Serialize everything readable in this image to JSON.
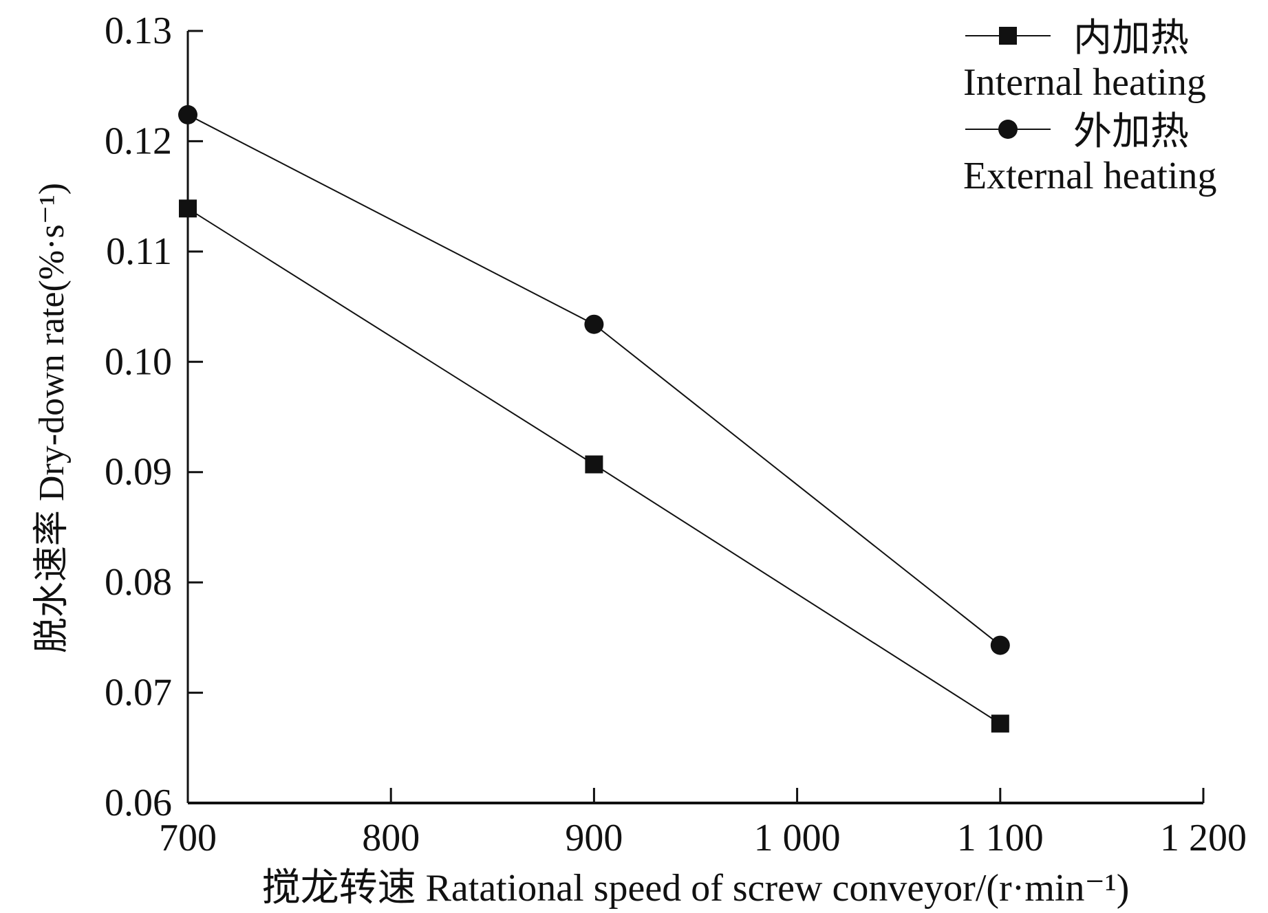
{
  "chart_data": {
    "type": "line",
    "title": "",
    "xlabel": "搅龙转速 Ratational speed of screw conveyor/(r·min⁻¹)",
    "ylabel": "脱水速率 Dry-down rate(%·s⁻¹)",
    "xlim": [
      700,
      1200
    ],
    "ylim": [
      0.06,
      0.13
    ],
    "xticks": [
      700,
      800,
      900,
      1000,
      1100,
      1200
    ],
    "xtick_labels": [
      "700",
      "800",
      "900",
      "1 000",
      "1 100",
      "1 200"
    ],
    "yticks": [
      0.06,
      0.07,
      0.08,
      0.09,
      0.1,
      0.11,
      0.12,
      0.13
    ],
    "ytick_labels": [
      "0.06",
      "0.07",
      "0.08",
      "0.09",
      "0.10",
      "0.11",
      "0.12",
      "0.13"
    ],
    "grid": false,
    "legend_position": "top-right",
    "series": [
      {
        "name": "内加热 Internal heating",
        "name_cn": "内加热",
        "name_en": "Internal heating",
        "marker": "square",
        "color": "#111111",
        "x": [
          700,
          900,
          1100
        ],
        "y": [
          0.1139,
          0.0907,
          0.0672
        ]
      },
      {
        "name": "外加热 External heating",
        "name_cn": "外加热",
        "name_en": "External heating",
        "marker": "circle",
        "color": "#111111",
        "x": [
          700,
          900,
          1100
        ],
        "y": [
          0.1224,
          0.1034,
          0.0743
        ]
      }
    ]
  }
}
